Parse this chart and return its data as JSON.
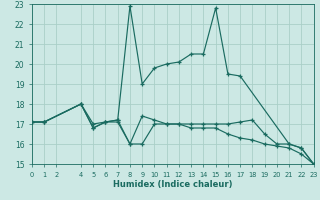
{
  "xlabel": "Humidex (Indice chaleur)",
  "xlim": [
    0,
    23
  ],
  "ylim": [
    15,
    23
  ],
  "yticks": [
    15,
    16,
    17,
    18,
    19,
    20,
    21,
    22,
    23
  ],
  "xticks": [
    0,
    1,
    2,
    4,
    5,
    6,
    7,
    8,
    9,
    10,
    11,
    12,
    13,
    14,
    15,
    16,
    17,
    18,
    19,
    20,
    21,
    22,
    23
  ],
  "bg_color": "#cce8e4",
  "line_color": "#1a6b60",
  "grid_color": "#aacfc8",
  "lines": [
    {
      "x": [
        0,
        1,
        4,
        5,
        6,
        7,
        8,
        9,
        10,
        11,
        12,
        13,
        14,
        15,
        16,
        17,
        21,
        22,
        23
      ],
      "y": [
        17.1,
        17.1,
        18.0,
        17.0,
        17.1,
        17.2,
        22.9,
        19.0,
        19.8,
        20.0,
        20.1,
        20.5,
        20.5,
        22.8,
        19.5,
        19.4,
        16.0,
        15.8,
        15.0
      ]
    },
    {
      "x": [
        0,
        1,
        4,
        5,
        6,
        7,
        8,
        9,
        10,
        11,
        12,
        13,
        14,
        15,
        16,
        17,
        18,
        19,
        20,
        21,
        22,
        23
      ],
      "y": [
        17.1,
        17.1,
        18.0,
        16.8,
        17.1,
        17.1,
        16.0,
        17.4,
        17.2,
        17.0,
        17.0,
        17.0,
        17.0,
        17.0,
        17.0,
        17.1,
        17.2,
        16.5,
        16.0,
        16.0,
        15.8,
        15.0
      ]
    },
    {
      "x": [
        0,
        1,
        4,
        5,
        6,
        7,
        8,
        9,
        10,
        11,
        12,
        13,
        14,
        15,
        16,
        17,
        18,
        19,
        20,
        21,
        22,
        23
      ],
      "y": [
        17.1,
        17.1,
        18.0,
        16.8,
        17.1,
        17.2,
        16.0,
        16.0,
        17.0,
        17.0,
        17.0,
        16.8,
        16.8,
        16.8,
        16.5,
        16.3,
        16.2,
        16.0,
        15.9,
        15.8,
        15.5,
        15.0
      ]
    }
  ]
}
